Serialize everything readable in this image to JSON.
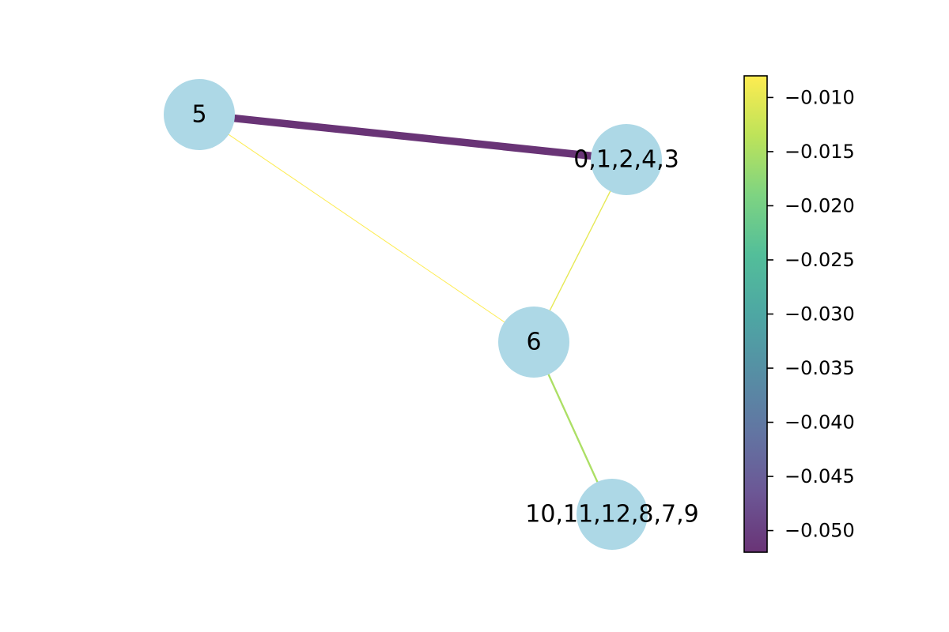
{
  "graph": {
    "nodes": [
      {
        "id": "n5",
        "label": "5"
      },
      {
        "id": "nA",
        "label": "0,1,2,4,3"
      },
      {
        "id": "n6",
        "label": "6"
      },
      {
        "id": "nB",
        "label": "10,11,12,8,7,9"
      }
    ],
    "edges": [
      {
        "source": "n5",
        "target": "nA",
        "weight": -0.052
      },
      {
        "source": "n5",
        "target": "n6",
        "weight": -0.008
      },
      {
        "source": "nA",
        "target": "n6",
        "weight": -0.01
      },
      {
        "source": "n6",
        "target": "nB",
        "weight": -0.015
      }
    ],
    "node_color": "#add8e6",
    "colormap": "viridis"
  },
  "colorbar": {
    "min": -0.052,
    "max": -0.008,
    "ticks": [
      -0.01,
      -0.015,
      -0.02,
      -0.025,
      -0.03,
      -0.035,
      -0.04,
      -0.045,
      -0.05
    ],
    "tick_labels": [
      "−0.010",
      "−0.015",
      "−0.020",
      "−0.025",
      "−0.030",
      "−0.035",
      "−0.040",
      "−0.045",
      "−0.050"
    ]
  }
}
